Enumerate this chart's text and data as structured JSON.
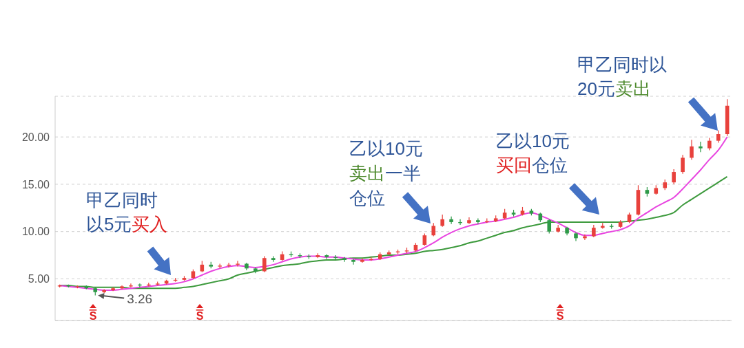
{
  "chart_data": {
    "type": "candlestick",
    "categories": [
      null,
      null,
      null,
      null,
      null,
      null,
      null,
      null,
      null,
      null,
      null,
      null,
      null,
      null,
      null,
      null,
      null,
      null,
      null,
      null,
      null,
      null,
      null,
      null,
      null,
      null,
      null,
      null,
      null,
      null,
      null,
      null,
      null,
      null,
      null,
      null,
      null,
      null,
      null,
      null,
      null,
      null,
      null,
      null,
      null,
      null,
      null,
      null,
      null,
      null,
      null,
      null,
      null,
      null,
      null,
      null,
      null,
      null,
      null,
      null,
      null,
      null,
      null,
      null,
      null,
      null,
      null,
      null,
      null,
      null,
      null,
      null,
      null,
      null,
      null,
      null
    ],
    "ohlc": [
      [
        4.2,
        4.4,
        4.1,
        4.3
      ],
      [
        4.3,
        4.4,
        4.1,
        4.2
      ],
      [
        4.2,
        4.3,
        4.0,
        4.2
      ],
      [
        4.2,
        4.3,
        3.9,
        4.0
      ],
      [
        4.0,
        4.1,
        3.26,
        3.6
      ],
      [
        3.6,
        3.9,
        3.5,
        3.8
      ],
      [
        3.8,
        4.1,
        3.7,
        4.0
      ],
      [
        4.0,
        4.3,
        3.9,
        4.2
      ],
      [
        4.2,
        4.5,
        4.1,
        4.3
      ],
      [
        4.4,
        4.5,
        4.1,
        4.3
      ],
      [
        4.3,
        4.6,
        4.2,
        4.4
      ],
      [
        4.4,
        4.7,
        4.3,
        4.5
      ],
      [
        4.5,
        4.9,
        4.4,
        4.8
      ],
      [
        4.8,
        5.1,
        4.7,
        4.9
      ],
      [
        4.9,
        5.3,
        4.8,
        5.1
      ],
      [
        5.1,
        6.0,
        5.0,
        5.8
      ],
      [
        5.8,
        6.9,
        5.7,
        6.5
      ],
      [
        6.5,
        6.8,
        6.1,
        6.3
      ],
      [
        6.3,
        6.6,
        6.1,
        6.4
      ],
      [
        6.4,
        6.7,
        6.2,
        6.5
      ],
      [
        6.5,
        6.9,
        6.3,
        6.6
      ],
      [
        6.6,
        6.7,
        5.9,
        6.1
      ],
      [
        6.1,
        6.2,
        5.6,
        5.8
      ],
      [
        5.8,
        7.4,
        5.7,
        7.2
      ],
      [
        7.2,
        7.4,
        6.8,
        7.0
      ],
      [
        7.0,
        7.9,
        6.9,
        7.6
      ],
      [
        7.6,
        7.9,
        7.3,
        7.5
      ],
      [
        7.5,
        7.7,
        7.2,
        7.4
      ],
      [
        7.4,
        7.6,
        7.1,
        7.3
      ],
      [
        7.3,
        7.7,
        7.2,
        7.5
      ],
      [
        7.5,
        7.6,
        7.1,
        7.3
      ],
      [
        7.3,
        7.5,
        7.0,
        7.2
      ],
      [
        7.2,
        7.3,
        6.8,
        7.0
      ],
      [
        7.0,
        7.1,
        6.5,
        6.8
      ],
      [
        6.8,
        7.2,
        6.7,
        7.0
      ],
      [
        7.0,
        7.3,
        6.9,
        7.1
      ],
      [
        7.1,
        7.8,
        7.0,
        7.6
      ],
      [
        7.6,
        8.0,
        7.5,
        7.8
      ],
      [
        7.8,
        8.1,
        7.6,
        7.9
      ],
      [
        7.9,
        8.3,
        7.7,
        8.0
      ],
      [
        8.0,
        8.8,
        7.9,
        8.6
      ],
      [
        8.6,
        9.8,
        8.5,
        9.6
      ],
      [
        9.6,
        10.9,
        9.5,
        10.6
      ],
      [
        10.6,
        11.8,
        10.5,
        11.3
      ],
      [
        11.3,
        11.6,
        10.8,
        11.0
      ],
      [
        11.0,
        11.3,
        10.7,
        10.9
      ],
      [
        10.9,
        11.5,
        10.8,
        11.2
      ],
      [
        11.2,
        11.4,
        10.8,
        11.0
      ],
      [
        11.0,
        11.4,
        10.9,
        11.1
      ],
      [
        11.1,
        11.7,
        11.0,
        11.4
      ],
      [
        11.4,
        12.4,
        11.3,
        12.0
      ],
      [
        12.0,
        12.3,
        11.6,
        11.8
      ],
      [
        11.8,
        12.6,
        11.7,
        12.2
      ],
      [
        12.2,
        12.4,
        11.7,
        11.9
      ],
      [
        11.9,
        12.0,
        11.0,
        11.2
      ],
      [
        11.2,
        11.3,
        9.8,
        10.0
      ],
      [
        10.0,
        10.7,
        9.9,
        10.4
      ],
      [
        10.4,
        10.5,
        9.6,
        9.8
      ],
      [
        9.8,
        9.9,
        9.0,
        9.3
      ],
      [
        9.3,
        9.7,
        9.1,
        9.5
      ],
      [
        9.5,
        10.7,
        9.4,
        10.4
      ],
      [
        10.4,
        10.9,
        10.3,
        10.6
      ],
      [
        10.6,
        10.8,
        10.3,
        10.5
      ],
      [
        10.5,
        11.2,
        10.4,
        11.0
      ],
      [
        11.0,
        12.0,
        10.9,
        11.8
      ],
      [
        11.8,
        14.9,
        11.7,
        14.4
      ],
      [
        14.4,
        14.7,
        13.7,
        14.0
      ],
      [
        14.0,
        14.9,
        13.9,
        14.6
      ],
      [
        14.6,
        15.5,
        14.4,
        15.2
      ],
      [
        15.2,
        16.6,
        15.0,
        16.3
      ],
      [
        16.3,
        18.1,
        16.1,
        17.8
      ],
      [
        17.8,
        19.7,
        17.6,
        19.0
      ],
      [
        19.0,
        19.5,
        18.4,
        18.8
      ],
      [
        18.8,
        19.9,
        18.6,
        19.6
      ],
      [
        19.6,
        20.7,
        19.4,
        20.3
      ],
      [
        20.3,
        24.0,
        20.1,
        23.3
      ]
    ],
    "series": [
      {
        "type": "line",
        "color": "#3d9a3d",
        "values": [
          4.3,
          4.3,
          4.2,
          4.2,
          4.1,
          4.1,
          4.1,
          4.1,
          4.0,
          4.0,
          4.0,
          4.0,
          4.0,
          4.0,
          4.1,
          4.2,
          4.4,
          4.6,
          4.8,
          5.0,
          5.4,
          5.6,
          5.8,
          6.0,
          6.2,
          6.4,
          6.5,
          6.6,
          6.8,
          6.9,
          7.0,
          7.0,
          7.1,
          7.2,
          7.2,
          7.3,
          7.4,
          7.5,
          7.5,
          7.6,
          7.7,
          7.9,
          8.0,
          8.1,
          8.3,
          8.5,
          8.8,
          9.0,
          9.3,
          9.6,
          9.9,
          10.1,
          10.4,
          10.6,
          10.8,
          11.0,
          11.0,
          11.0,
          11.0,
          11.0,
          11.0,
          11.0,
          11.0,
          11.0,
          11.1,
          11.2,
          11.3,
          11.5,
          11.7,
          12.0,
          12.8,
          13.4,
          14.0,
          14.6,
          15.2,
          15.8
        ]
      },
      {
        "type": "line",
        "color": "#e845e0",
        "values": [
          4.3,
          4.2,
          4.1,
          4.0,
          3.9,
          3.8,
          3.8,
          3.9,
          4.0,
          4.1,
          4.2,
          4.3,
          4.4,
          4.5,
          4.7,
          5.0,
          5.4,
          5.8,
          6.1,
          6.3,
          6.4,
          6.3,
          6.2,
          6.3,
          6.5,
          6.8,
          7.1,
          7.3,
          7.4,
          7.4,
          7.3,
          7.3,
          7.2,
          7.1,
          7.0,
          7.0,
          7.1,
          7.3,
          7.5,
          7.7,
          7.9,
          8.3,
          8.8,
          9.4,
          9.9,
          10.3,
          10.6,
          10.8,
          11.0,
          11.1,
          11.3,
          11.5,
          11.8,
          12.0,
          11.7,
          11.3,
          10.9,
          10.4,
          9.9,
          9.6,
          9.6,
          9.8,
          10.0,
          10.2,
          10.6,
          11.4,
          12.0,
          12.6,
          13.1,
          13.6,
          14.5,
          15.5,
          16.5,
          17.6,
          18.6,
          20.0
        ]
      }
    ],
    "ylim": [
      0.6,
      24.3
    ],
    "yticks": [
      {
        "value": 5,
        "label": "5.00"
      },
      {
        "value": 10,
        "label": "10.00"
      },
      {
        "value": 15,
        "label": "15.00"
      },
      {
        "value": 20,
        "label": "20.00"
      }
    ],
    "grid": "y",
    "annotations": [
      "甲乙同时",
      "以5元",
      "买入",
      "乙以10元",
      "卖出",
      "一半",
      "仓位",
      "乙以10元",
      "买回",
      "仓位",
      "甲乙同时以",
      "20元",
      "卖出",
      "3.26",
      "S",
      "S",
      "S"
    ]
  }
}
